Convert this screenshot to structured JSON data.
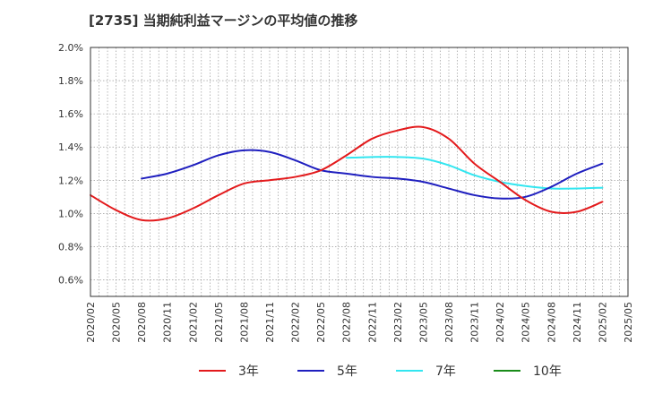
{
  "chart_data": {
    "type": "line",
    "title": "[2735]  当期純利益マージンの平均値の推移",
    "xlabel": "",
    "ylabel": "",
    "x_tick_labels": [
      "2020/02",
      "2020/05",
      "2020/08",
      "2020/11",
      "2021/02",
      "2021/05",
      "2021/08",
      "2021/11",
      "2022/02",
      "2022/05",
      "2022/08",
      "2022/11",
      "2023/02",
      "2023/05",
      "2023/08",
      "2023/11",
      "2024/02",
      "2024/05",
      "2024/08",
      "2024/11",
      "2025/02",
      "2025/05"
    ],
    "y_tick_labels": [
      "0.6%",
      "0.8%",
      "1.0%",
      "1.2%",
      "1.4%",
      "1.6%",
      "1.8%",
      "2.0%"
    ],
    "y_ticks": [
      0.6,
      0.8,
      1.0,
      1.2,
      1.4,
      1.6,
      1.8,
      2.0
    ],
    "ylim": [
      0.5,
      2.0
    ],
    "y_unit": "%",
    "grid": true,
    "legend_position": "bottom",
    "series": [
      {
        "name": "3年",
        "color": "#e31a1c",
        "points": [
          [
            "2020/02",
            1.11
          ],
          [
            "2020/05",
            1.02
          ],
          [
            "2020/08",
            0.96
          ],
          [
            "2020/11",
            0.97
          ],
          [
            "2021/02",
            1.03
          ],
          [
            "2021/05",
            1.11
          ],
          [
            "2021/08",
            1.18
          ],
          [
            "2021/11",
            1.2
          ],
          [
            "2022/02",
            1.22
          ],
          [
            "2022/05",
            1.26
          ],
          [
            "2022/08",
            1.35
          ],
          [
            "2022/11",
            1.45
          ],
          [
            "2023/02",
            1.5
          ],
          [
            "2023/05",
            1.52
          ],
          [
            "2023/08",
            1.45
          ],
          [
            "2023/11",
            1.3
          ],
          [
            "2024/02",
            1.19
          ],
          [
            "2024/05",
            1.08
          ],
          [
            "2024/08",
            1.01
          ],
          [
            "2024/11",
            1.01
          ],
          [
            "2025/02",
            1.07
          ]
        ]
      },
      {
        "name": "5年",
        "color": "#1f1fbf",
        "points": [
          [
            "2020/08",
            1.21
          ],
          [
            "2020/11",
            1.24
          ],
          [
            "2021/02",
            1.29
          ],
          [
            "2021/05",
            1.35
          ],
          [
            "2021/08",
            1.38
          ],
          [
            "2021/11",
            1.37
          ],
          [
            "2022/02",
            1.32
          ],
          [
            "2022/05",
            1.26
          ],
          [
            "2022/08",
            1.24
          ],
          [
            "2022/11",
            1.22
          ],
          [
            "2023/02",
            1.21
          ],
          [
            "2023/05",
            1.19
          ],
          [
            "2023/08",
            1.15
          ],
          [
            "2023/11",
            1.11
          ],
          [
            "2024/02",
            1.09
          ],
          [
            "2024/05",
            1.1
          ],
          [
            "2024/08",
            1.16
          ],
          [
            "2024/11",
            1.24
          ],
          [
            "2025/02",
            1.3
          ]
        ]
      },
      {
        "name": "7年",
        "color": "#33e6f0",
        "points": [
          [
            "2022/08",
            1.335
          ],
          [
            "2022/11",
            1.34
          ],
          [
            "2023/02",
            1.34
          ],
          [
            "2023/05",
            1.33
          ],
          [
            "2023/08",
            1.29
          ],
          [
            "2023/11",
            1.23
          ],
          [
            "2024/02",
            1.19
          ],
          [
            "2024/05",
            1.165
          ],
          [
            "2024/08",
            1.15
          ],
          [
            "2024/11",
            1.15
          ],
          [
            "2025/02",
            1.155
          ]
        ]
      },
      {
        "name": "10年",
        "color": "#1a8c1a",
        "points": []
      }
    ]
  }
}
